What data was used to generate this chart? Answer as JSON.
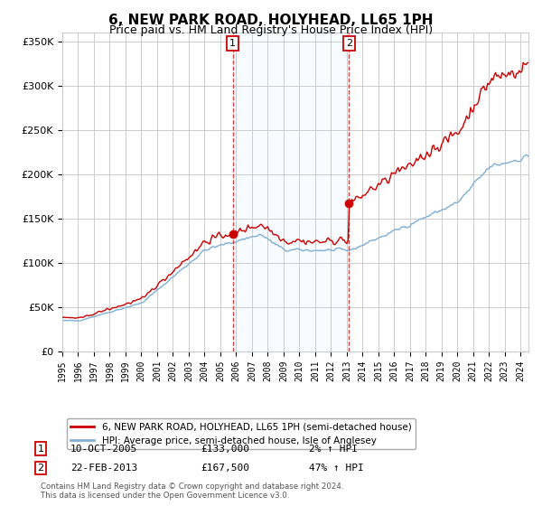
{
  "title": "6, NEW PARK ROAD, HOLYHEAD, LL65 1PH",
  "subtitle": "Price paid vs. HM Land Registry's House Price Index (HPI)",
  "title_fontsize": 11,
  "subtitle_fontsize": 9,
  "ylim": [
    0,
    360000
  ],
  "yticks": [
    0,
    50000,
    100000,
    150000,
    200000,
    250000,
    300000,
    350000
  ],
  "ytick_labels": [
    "£0",
    "£50K",
    "£100K",
    "£150K",
    "£200K",
    "£250K",
    "£300K",
    "£350K"
  ],
  "background_color": "#ffffff",
  "plot_bg_color": "#ffffff",
  "grid_color": "#cccccc",
  "hpi_line_color": "#7fafd4",
  "price_line_color": "#cc0000",
  "purchase1": {
    "date_num": 2005.78,
    "price": 133000,
    "label": "1",
    "date_str": "10-OCT-2005",
    "pct": "2%"
  },
  "purchase2": {
    "date_num": 2013.14,
    "price": 167500,
    "label": "2",
    "date_str": "22-FEB-2013",
    "pct": "47%"
  },
  "legend_line1": "6, NEW PARK ROAD, HOLYHEAD, LL65 1PH (semi-detached house)",
  "legend_line2": "HPI: Average price, semi-detached house, Isle of Anglesey",
  "footer1": "Contains HM Land Registry data © Crown copyright and database right 2024.",
  "footer2": "This data is licensed under the Open Government Licence v3.0.",
  "shade_color": "#ddeeff",
  "marker_box_color": "#cc0000",
  "xlim_start": 1995,
  "xlim_end": 2024.5
}
